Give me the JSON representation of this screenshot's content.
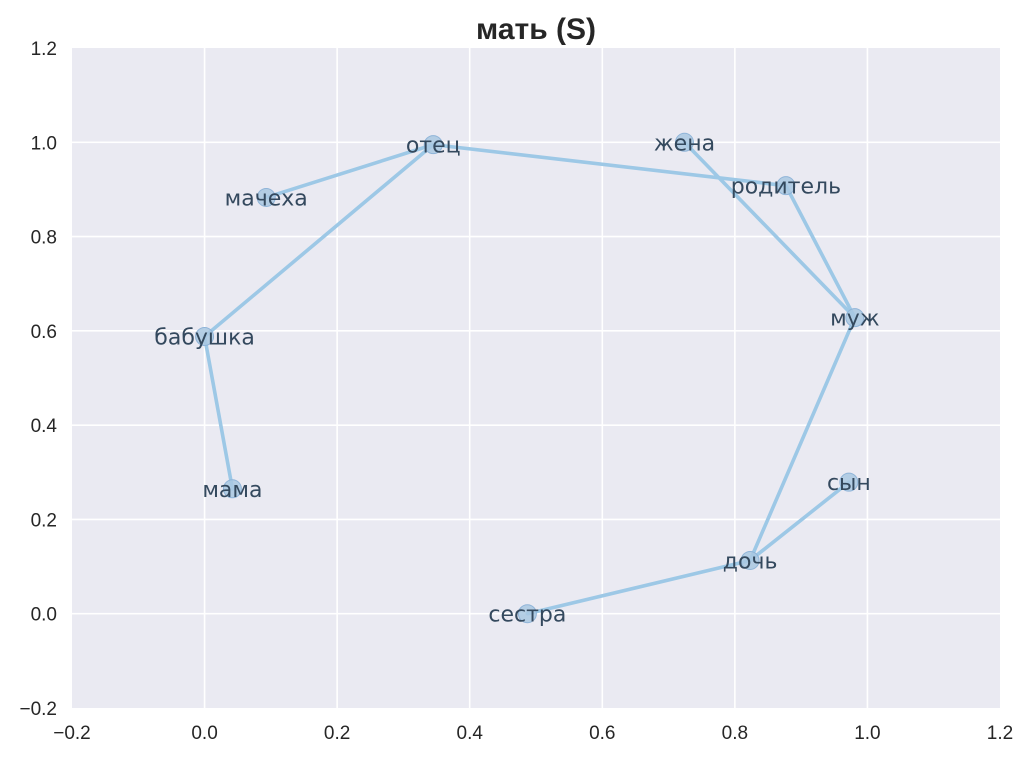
{
  "chart_data": {
    "type": "scatter",
    "title": "мать (S)",
    "xlabel": "",
    "ylabel": "",
    "xlim": [
      -0.2,
      1.2
    ],
    "ylim": [
      -0.2,
      1.2
    ],
    "xticks": [
      "−0.2",
      "0.0",
      "0.2",
      "0.4",
      "0.6",
      "0.8",
      "1.0",
      "1.2"
    ],
    "yticks": [
      "−0.2",
      "0.0",
      "0.2",
      "0.4",
      "0.6",
      "0.8",
      "1.0",
      "1.2"
    ],
    "grid": true,
    "points": [
      {
        "label": "отец",
        "x": 0.345,
        "y": 0.995
      },
      {
        "label": "мачеха",
        "x": 0.093,
        "y": 0.883
      },
      {
        "label": "бабушка",
        "x": 0.0,
        "y": 0.588
      },
      {
        "label": "мама",
        "x": 0.042,
        "y": 0.265
      },
      {
        "label": "жена",
        "x": 0.724,
        "y": 1.0
      },
      {
        "label": "родитель",
        "x": 0.877,
        "y": 0.908
      },
      {
        "label": "муж",
        "x": 0.981,
        "y": 0.628
      },
      {
        "label": "сын",
        "x": 0.972,
        "y": 0.279
      },
      {
        "label": "дочь",
        "x": 0.823,
        "y": 0.113
      },
      {
        "label": "сестра",
        "x": 0.487,
        "y": 0.0
      }
    ],
    "edges": [
      [
        "отец",
        "мачеха"
      ],
      [
        "отец",
        "бабушка"
      ],
      [
        "бабушка",
        "мама"
      ],
      [
        "отец",
        "родитель"
      ],
      [
        "жена",
        "муж"
      ],
      [
        "родитель",
        "муж"
      ],
      [
        "муж",
        "дочь"
      ],
      [
        "дочь",
        "сын"
      ],
      [
        "дочь",
        "сестра"
      ]
    ],
    "colors": {
      "background": "#eaeaf2",
      "grid": "#ffffff",
      "edge": "#9dc8e6",
      "marker_fill": "#a9c8e2",
      "marker_stroke": "#8fb4d8",
      "label": "#34495e",
      "text": "#262626"
    }
  }
}
